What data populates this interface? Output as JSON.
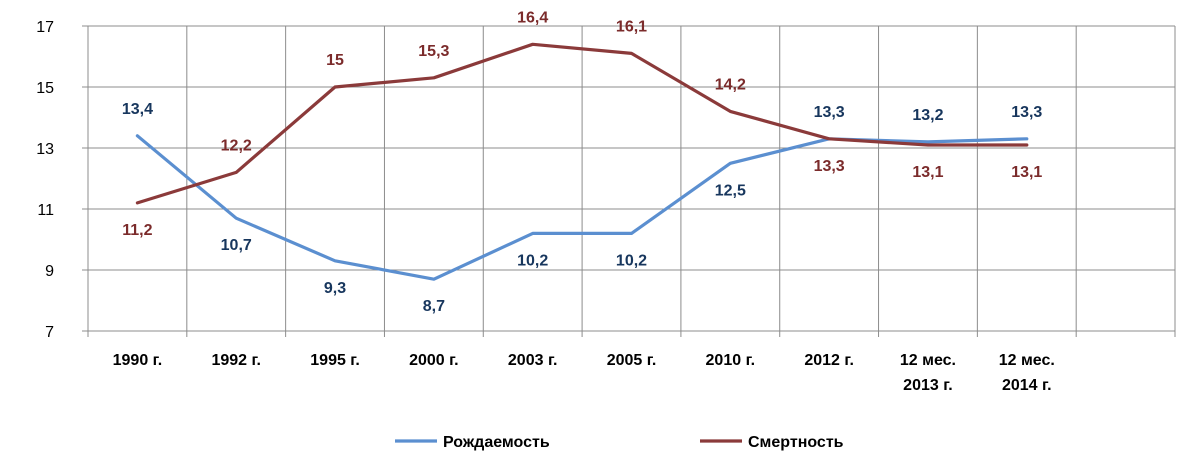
{
  "chart_data": {
    "type": "line",
    "categories": [
      "1990 г.",
      "1992 г.",
      "1995 г.",
      "2000 г.",
      "2003 г.",
      "2005 г.",
      "2010 г.",
      "2012 г.",
      "12 мес. 2013 г.",
      "12 мес. 2014 г."
    ],
    "category_lines": [
      [
        "1990 г."
      ],
      [
        "1992 г."
      ],
      [
        "1995 г."
      ],
      [
        "2000 г."
      ],
      [
        "2003 г."
      ],
      [
        "2005 г."
      ],
      [
        "2010 г."
      ],
      [
        "2012 г."
      ],
      [
        "12 мес.",
        "2013 г."
      ],
      [
        "12 мес.",
        "2014 г."
      ]
    ],
    "ylim": [
      7,
      17
    ],
    "yticks": [
      7,
      9,
      11,
      13,
      15,
      17
    ],
    "grid": true,
    "legend_position": "bottom",
    "series": [
      {
        "name": "Рождаемость",
        "color": "#5b8fd0",
        "label_color": "#17365d",
        "values": [
          13.4,
          10.7,
          9.3,
          8.7,
          10.2,
          10.2,
          12.5,
          13.3,
          13.2,
          13.3
        ],
        "labels": [
          "13,4",
          "10,7",
          "9,3",
          "8,7",
          "10,2",
          "10,2",
          "12,5",
          "13,3",
          "13,2",
          "13,3"
        ]
      },
      {
        "name": "Смертность",
        "color": "#8b3a3a",
        "label_color": "#7b2b2b",
        "values": [
          11.2,
          12.2,
          15,
          15.3,
          16.4,
          16.1,
          14.2,
          13.3,
          13.1,
          13.1
        ],
        "labels": [
          "11,2",
          "12,2",
          "15",
          "15,3",
          "16,4",
          "16,1",
          "14,2",
          "13,3",
          "13,1",
          "13,1"
        ]
      }
    ]
  }
}
